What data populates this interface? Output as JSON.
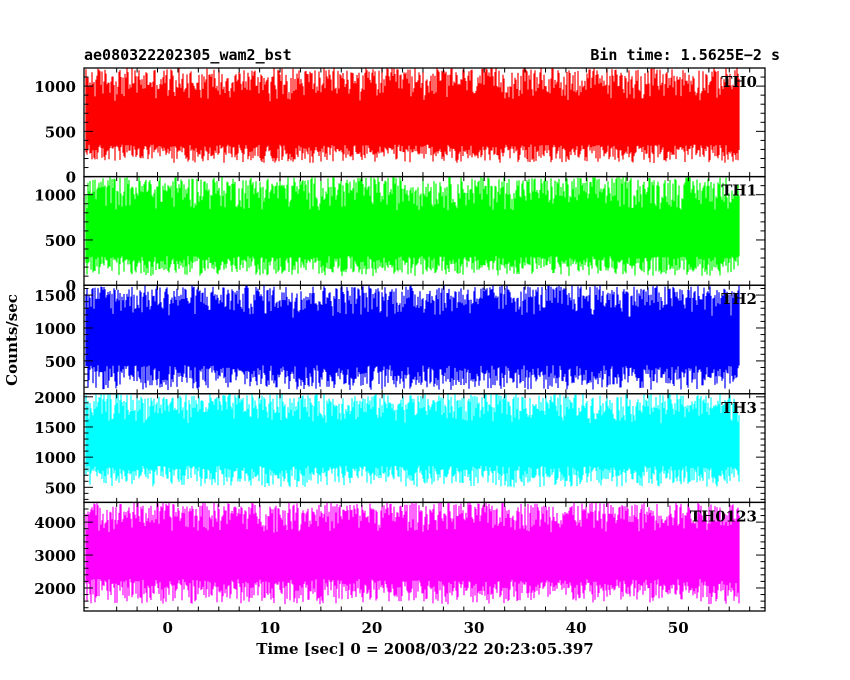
{
  "header": {
    "left_title": "ae080322202305_wam2_bst",
    "right_title": "Bin time: 1.5625E−2 s"
  },
  "chart_data": {
    "type": "line",
    "title": "ae080322202305_wam2_bst",
    "subtitle": "Bin time: 1.5625E−2 s",
    "xlabel": "Time [sec] 0 = 2008/03/22 20:23:05.397",
    "ylabel": "Counts/sec",
    "x_range": [
      -8,
      56
    ],
    "xlim": [
      -8.2,
      58.5
    ],
    "x_ticks": [
      0,
      10,
      20,
      30,
      40,
      50
    ],
    "grid": false,
    "panels": [
      {
        "name": "TH0",
        "color": "#ff0000",
        "ylim": [
          0,
          1200
        ],
        "y_ticks": [
          0,
          500,
          1000
        ],
        "typical_range": [
          150,
          1200
        ],
        "median": 520
      },
      {
        "name": "TH1",
        "color": "#00ff00",
        "ylim": [
          0,
          1200
        ],
        "y_ticks": [
          0,
          500,
          1000
        ],
        "typical_range": [
          100,
          1200
        ],
        "median": 500
      },
      {
        "name": "TH2",
        "color": "#0000ff",
        "ylim": [
          0,
          1650
        ],
        "y_ticks": [
          500,
          1000,
          1500
        ],
        "typical_range": [
          50,
          1650
        ],
        "median": 750
      },
      {
        "name": "TH3",
        "color": "#00ffff",
        "ylim": [
          250,
          2050
        ],
        "y_ticks": [
          500,
          1000,
          1500,
          2000
        ],
        "typical_range": [
          500,
          2050
        ],
        "median": 1150
      },
      {
        "name": "TH0123",
        "color": "#ff00ff",
        "ylim": [
          1300,
          4600
        ],
        "y_ticks": [
          2000,
          3000,
          4000
        ],
        "typical_range": [
          1500,
          4600
        ],
        "median": 2900
      }
    ]
  }
}
